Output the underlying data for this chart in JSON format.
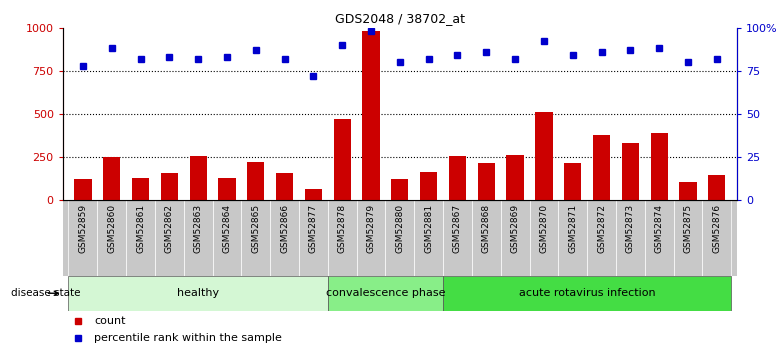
{
  "title": "GDS2048 / 38702_at",
  "samples": [
    "GSM52859",
    "GSM52860",
    "GSM52861",
    "GSM52862",
    "GSM52863",
    "GSM52864",
    "GSM52865",
    "GSM52866",
    "GSM52877",
    "GSM52878",
    "GSM52879",
    "GSM52880",
    "GSM52881",
    "GSM52867",
    "GSM52868",
    "GSM52869",
    "GSM52870",
    "GSM52871",
    "GSM52872",
    "GSM52873",
    "GSM52874",
    "GSM52875",
    "GSM52876"
  ],
  "counts": [
    120,
    250,
    130,
    155,
    255,
    130,
    220,
    155,
    65,
    470,
    980,
    120,
    165,
    255,
    215,
    260,
    510,
    215,
    380,
    330,
    390,
    105,
    145
  ],
  "percentiles": [
    78,
    88,
    82,
    83,
    82,
    83,
    87,
    82,
    72,
    90,
    98,
    80,
    82,
    84,
    86,
    82,
    92,
    84,
    86,
    87,
    88,
    80,
    82
  ],
  "groups": [
    {
      "label": "healthy",
      "start": 0,
      "end": 9,
      "color": "#d4f7d4"
    },
    {
      "label": "convalescence phase",
      "start": 9,
      "end": 13,
      "color": "#88ee88"
    },
    {
      "label": "acute rotavirus infection",
      "start": 13,
      "end": 23,
      "color": "#44dd44"
    }
  ],
  "ylim_left": [
    0,
    1000
  ],
  "ylim_right": [
    0,
    100
  ],
  "yticks_left": [
    0,
    250,
    500,
    750,
    1000
  ],
  "yticks_right": [
    0,
    25,
    50,
    75,
    100
  ],
  "ytick_labels_left": [
    "0",
    "250",
    "500",
    "750",
    "1000"
  ],
  "ytick_labels_right": [
    "0",
    "25",
    "50",
    "75",
    "100%"
  ],
  "bar_color": "#cc0000",
  "dot_color": "#0000cc",
  "bar_width": 0.6,
  "grid_lines": [
    250,
    500,
    750
  ],
  "disease_state_label": "disease state",
  "legend_count_label": "count",
  "legend_percentile_label": "percentile rank within the sample",
  "xtick_bg_color": "#c8c8c8",
  "figsize": [
    7.84,
    3.45
  ],
  "dpi": 100
}
